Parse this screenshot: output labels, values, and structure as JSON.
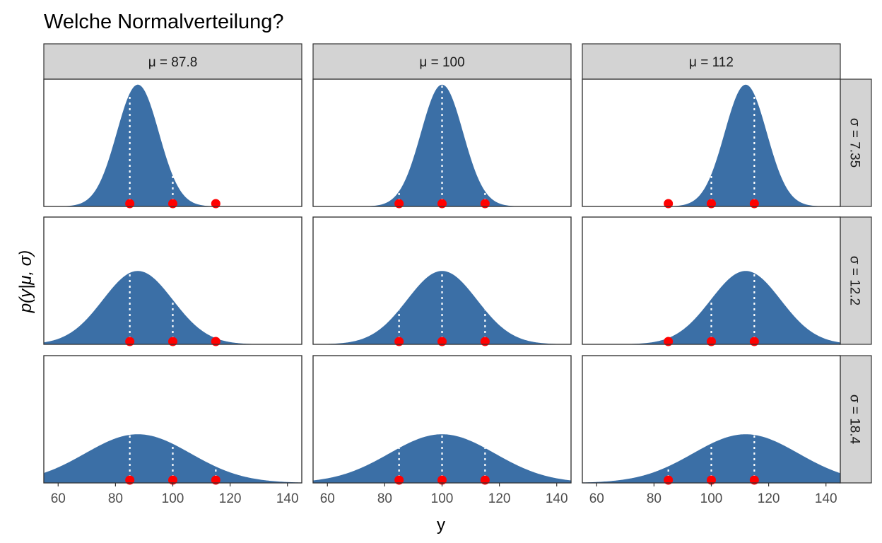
{
  "title": "Welche Normalverteilung?",
  "xlabel": "y",
  "ylabel": "p(y|μ, σ)",
  "colors": {
    "density_fill": "#3b6fa6",
    "points": "#ff0000",
    "guide_lines": "#ffffff",
    "strip_background": "#d3d3d3"
  },
  "chart_data": {
    "type": "area",
    "xlim": [
      55,
      145
    ],
    "x_ticks": [
      60,
      80,
      100,
      120,
      140
    ],
    "observed_points": [
      85,
      100,
      115
    ],
    "columns": [
      {
        "label": "μ = 87.8",
        "mu": 87.8
      },
      {
        "label": "μ = 100",
        "mu": 100
      },
      {
        "label": "μ = 112",
        "mu": 112
      }
    ],
    "rows": [
      {
        "label": "σ = 7.35",
        "sigma": 7.35
      },
      {
        "label": "σ = 12.2",
        "sigma": 12.2
      },
      {
        "label": "σ = 18.4",
        "sigma": 18.4
      }
    ]
  }
}
